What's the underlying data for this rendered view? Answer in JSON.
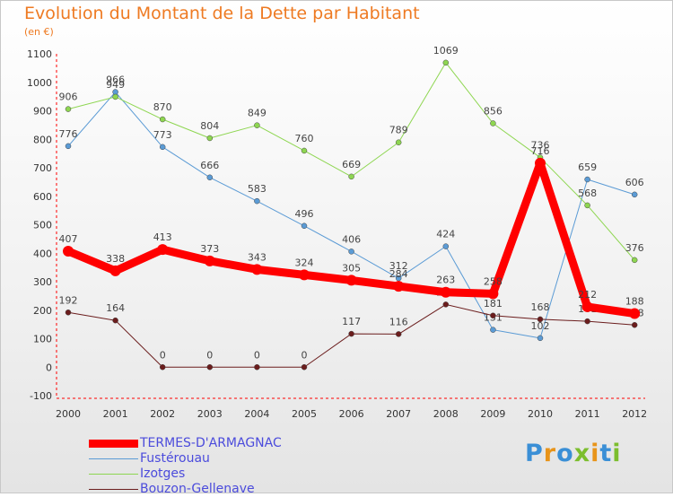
{
  "header": {
    "title": "Evolution du Montant de la Dette par Habitant",
    "subtitle": "(en €)"
  },
  "logo": {
    "text": "Proxiti",
    "letter_colors": [
      "#3a8fd6",
      "#e8941a",
      "#3a8fd6",
      "#7cbe2e",
      "#e8941a",
      "#3a8fd6",
      "#7cbe2e"
    ]
  },
  "chart_data": {
    "type": "line",
    "title": "Evolution du Montant de la Dette par Habitant",
    "subtitle": "(en €)",
    "x": [
      "2000",
      "2001",
      "2002",
      "2003",
      "2004",
      "2005",
      "2006",
      "2007",
      "2008",
      "2009",
      "2010",
      "2011",
      "2012"
    ],
    "ylim": [
      -100,
      1100
    ],
    "yticks": [
      -100,
      0,
      100,
      200,
      300,
      400,
      500,
      600,
      700,
      800,
      900,
      1000,
      1100
    ],
    "grid": false,
    "legend_position": "bottom-left",
    "series": [
      {
        "name": "TERMES-D'ARMAGNAC",
        "color": "#ff0000",
        "values": [
          407,
          338,
          413,
          373,
          343,
          324,
          305,
          284,
          263,
          258,
          716,
          212,
          188
        ]
      },
      {
        "name": "Fustérouau",
        "color": "#5b9bd5",
        "values": [
          776,
          966,
          773,
          666,
          583,
          496,
          406,
          312,
          424,
          131,
          102,
          659,
          606
        ]
      },
      {
        "name": "Izotges",
        "color": "#8ed651",
        "values": [
          906,
          949,
          870,
          804,
          849,
          760,
          669,
          789,
          1069,
          856,
          736,
          568,
          376
        ]
      },
      {
        "name": "Bouzon-Gellenave",
        "color": "#6b1d1d",
        "values": [
          192,
          164,
          0,
          0,
          0,
          0,
          117,
          116,
          220,
          181,
          168,
          161,
          148
        ]
      }
    ]
  }
}
